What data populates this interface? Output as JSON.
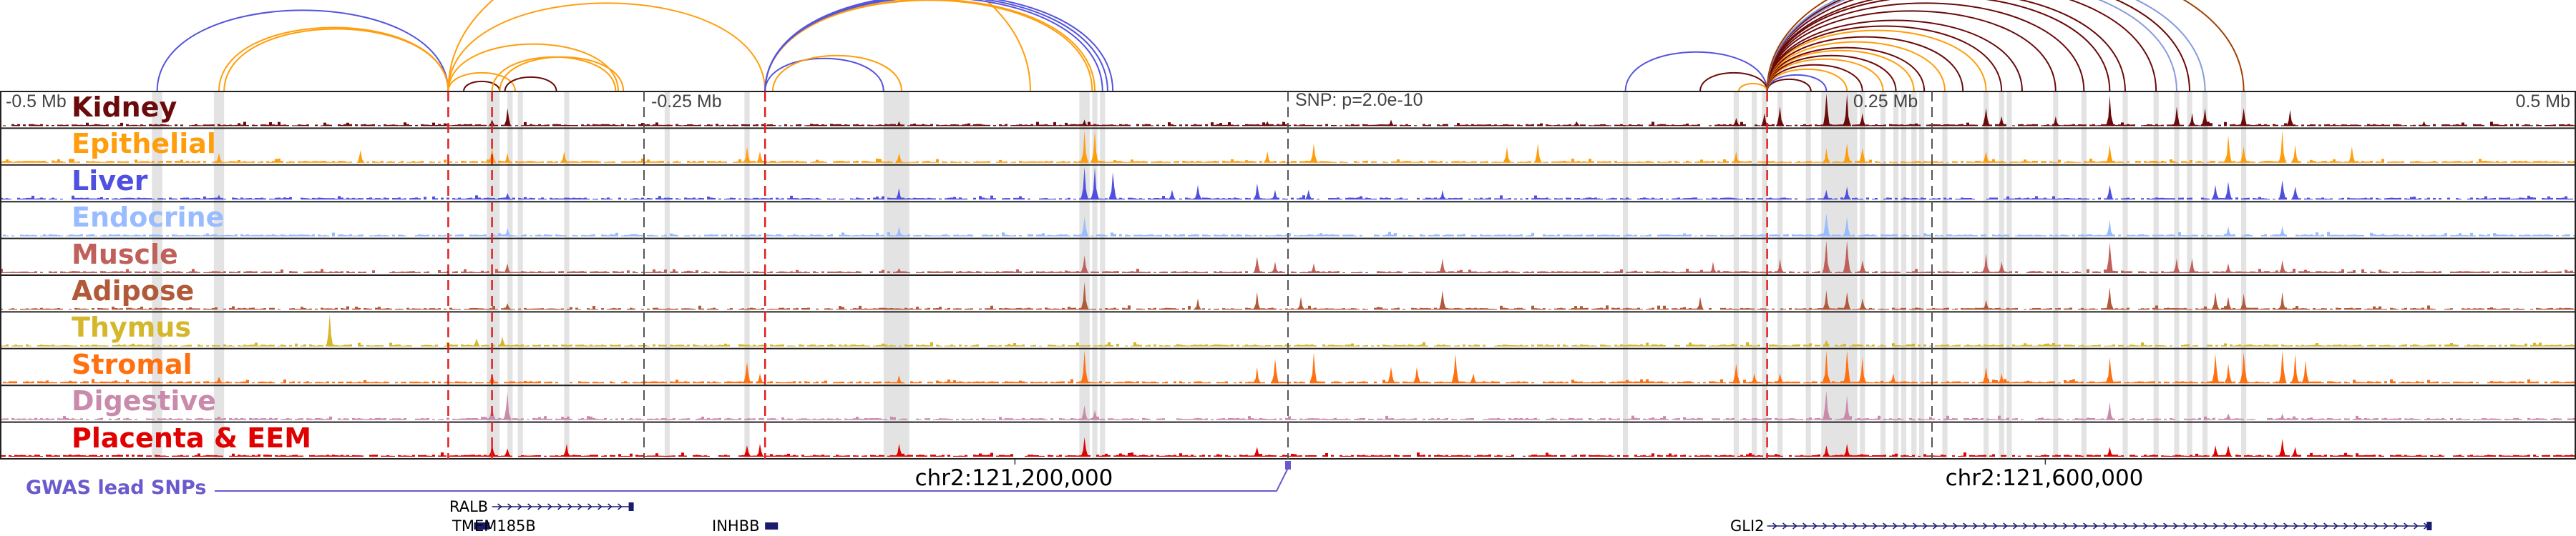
{
  "chart_data": {
    "type": "genome-browser-tracks",
    "x_unit": "kb relative to lead SNP",
    "xlim": [
      -500,
      500
    ],
    "axis_labels": {
      "left": "-0.5 Mb",
      "left_mid": "-0.25 Mb",
      "right_mid": "0.25 Mb",
      "right": "0.5 Mb"
    },
    "snp_label": "SNP: p=2.0e-10",
    "coordinates": [
      {
        "label": "chr2:121,200,000",
        "offset_kb": -106
      },
      {
        "label": "chr2:121,600,000",
        "offset_kb": 294
      }
    ],
    "gwas_label": "GWAS lead SNPs",
    "red_markers_kb": [
      -326,
      -309,
      -203,
      186
    ],
    "gray_markers_kb": [
      -250,
      0,
      250
    ],
    "highlights_kb": [
      [
        -441,
        -437
      ],
      [
        -417,
        -413
      ],
      [
        -311,
        -306
      ],
      [
        -303,
        -301
      ],
      [
        -299,
        -297
      ],
      [
        -281,
        -279
      ],
      [
        -242,
        -240
      ],
      [
        -211,
        -209
      ],
      [
        -157,
        -147
      ],
      [
        -81,
        -77
      ],
      [
        -76,
        -74
      ],
      [
        -73,
        -71
      ],
      [
        130,
        132
      ],
      [
        173,
        175
      ],
      [
        180,
        182
      ],
      [
        184,
        186
      ],
      [
        190,
        192
      ],
      [
        201,
        203
      ],
      [
        207,
        221
      ],
      [
        222,
        224
      ],
      [
        230,
        232
      ],
      [
        235,
        237
      ],
      [
        238,
        240
      ],
      [
        242,
        244
      ],
      [
        245,
        247
      ],
      [
        254,
        256
      ],
      [
        270,
        272
      ],
      [
        276,
        278
      ],
      [
        279,
        281
      ],
      [
        297,
        299
      ],
      [
        308,
        310
      ],
      [
        324,
        326
      ],
      [
        336,
        338
      ],
      [
        344,
        346
      ],
      [
        349,
        351
      ],
      [
        355,
        357
      ],
      [
        370,
        372
      ]
    ],
    "tracks": [
      {
        "name": "Kidney",
        "color": "#6b0a0a",
        "peaks": [
          [
            -303,
            0.55
          ],
          [
            -309,
            0.2
          ],
          [
            -151,
            0.15
          ],
          [
            -79,
            0.2
          ],
          [
            -8,
            0.15
          ],
          [
            40,
            0.2
          ],
          [
            112,
            0.15
          ],
          [
            174,
            0.25
          ],
          [
            185,
            0.4
          ],
          [
            191,
            0.6
          ],
          [
            209,
            1.0
          ],
          [
            217,
            1.0
          ],
          [
            223,
            0.4
          ],
          [
            271,
            0.55
          ],
          [
            277,
            0.3
          ],
          [
            298,
            0.3
          ],
          [
            319,
            0.95
          ],
          [
            345,
            0.6
          ],
          [
            351,
            0.4
          ],
          [
            356,
            0.55
          ],
          [
            371,
            0.55
          ],
          [
            389,
            0.5
          ],
          [
            441,
            0.15
          ]
        ]
      },
      {
        "name": "Epithelial",
        "color": "#ff9e0d",
        "peaks": [
          [
            -415,
            0.3
          ],
          [
            -360,
            0.4
          ],
          [
            -309,
            0.5
          ],
          [
            -303,
            0.3
          ],
          [
            -281,
            0.35
          ],
          [
            -210,
            0.5
          ],
          [
            -205,
            0.35
          ],
          [
            -151,
            0.3
          ],
          [
            -79,
            1.0
          ],
          [
            -75,
            1.0
          ],
          [
            -8,
            0.35
          ],
          [
            10,
            0.6
          ],
          [
            85,
            0.5
          ],
          [
            97,
            0.6
          ],
          [
            174,
            0.35
          ],
          [
            209,
            0.45
          ],
          [
            217,
            0.6
          ],
          [
            223,
            0.45
          ],
          [
            271,
            0.35
          ],
          [
            319,
            0.55
          ],
          [
            365,
            0.85
          ],
          [
            371,
            0.5
          ],
          [
            386,
            1.0
          ],
          [
            391,
            0.55
          ],
          [
            413,
            0.5
          ]
        ]
      },
      {
        "name": "Liver",
        "color": "#4f4fe0",
        "peaks": [
          [
            -415,
            0.15
          ],
          [
            -303,
            0.2
          ],
          [
            -151,
            0.35
          ],
          [
            -79,
            1.0
          ],
          [
            -75,
            1.0
          ],
          [
            -68,
            0.85
          ],
          [
            -45,
            0.3
          ],
          [
            -35,
            0.45
          ],
          [
            -12,
            0.5
          ],
          [
            -5,
            0.3
          ],
          [
            8,
            0.3
          ],
          [
            60,
            0.3
          ],
          [
            209,
            0.3
          ],
          [
            217,
            0.4
          ],
          [
            319,
            0.45
          ],
          [
            360,
            0.45
          ],
          [
            365,
            0.55
          ],
          [
            386,
            0.6
          ],
          [
            391,
            0.4
          ]
        ]
      },
      {
        "name": "Endocrine",
        "color": "#99bbff",
        "peaks": [
          [
            -303,
            0.25
          ],
          [
            -151,
            0.3
          ],
          [
            -79,
            0.6
          ],
          [
            209,
            0.7
          ],
          [
            217,
            0.6
          ],
          [
            319,
            0.5
          ],
          [
            365,
            0.3
          ],
          [
            386,
            0.3
          ]
        ]
      },
      {
        "name": "Muscle",
        "color": "#c0605a",
        "peaks": [
          [
            -303,
            0.3
          ],
          [
            -151,
            0.15
          ],
          [
            -79,
            0.55
          ],
          [
            -12,
            0.5
          ],
          [
            -5,
            0.35
          ],
          [
            10,
            0.3
          ],
          [
            60,
            0.45
          ],
          [
            165,
            0.35
          ],
          [
            191,
            0.45
          ],
          [
            209,
            1.0
          ],
          [
            217,
            1.0
          ],
          [
            223,
            0.4
          ],
          [
            271,
            0.6
          ],
          [
            277,
            0.35
          ],
          [
            319,
            0.95
          ],
          [
            345,
            0.45
          ],
          [
            351,
            0.45
          ],
          [
            365,
            0.3
          ],
          [
            386,
            0.4
          ]
        ]
      },
      {
        "name": "Adipose",
        "color": "#b05a3a",
        "peaks": [
          [
            -303,
            0.2
          ],
          [
            -79,
            0.85
          ],
          [
            -35,
            0.35
          ],
          [
            -12,
            0.55
          ],
          [
            5,
            0.4
          ],
          [
            60,
            0.6
          ],
          [
            160,
            0.4
          ],
          [
            209,
            0.6
          ],
          [
            217,
            0.55
          ],
          [
            223,
            0.35
          ],
          [
            271,
            0.3
          ],
          [
            319,
            0.7
          ],
          [
            360,
            0.55
          ],
          [
            365,
            0.4
          ],
          [
            371,
            0.5
          ],
          [
            386,
            0.55
          ]
        ]
      },
      {
        "name": "Thymus",
        "color": "#d4b72a",
        "peaks": [
          [
            -372,
            1.0
          ],
          [
            -315,
            0.25
          ],
          [
            -305,
            0.3
          ],
          [
            209,
            0.2
          ]
        ]
      },
      {
        "name": "Stromal",
        "color": "#ff7010",
        "peaks": [
          [
            -415,
            0.2
          ],
          [
            -309,
            0.3
          ],
          [
            -210,
            0.65
          ],
          [
            -205,
            0.3
          ],
          [
            -151,
            0.25
          ],
          [
            -79,
            1.0
          ],
          [
            -12,
            0.5
          ],
          [
            -5,
            0.75
          ],
          [
            10,
            0.95
          ],
          [
            40,
            0.5
          ],
          [
            50,
            0.5
          ],
          [
            65,
            0.9
          ],
          [
            72,
            0.3
          ],
          [
            174,
            0.6
          ],
          [
            181,
            0.3
          ],
          [
            191,
            0.3
          ],
          [
            209,
            1.0
          ],
          [
            217,
            1.0
          ],
          [
            223,
            0.8
          ],
          [
            235,
            0.3
          ],
          [
            271,
            0.5
          ],
          [
            277,
            0.3
          ],
          [
            319,
            0.8
          ],
          [
            360,
            0.9
          ],
          [
            365,
            0.6
          ],
          [
            371,
            0.95
          ],
          [
            386,
            1.0
          ],
          [
            391,
            0.9
          ],
          [
            395,
            0.7
          ]
        ]
      },
      {
        "name": "Digestive",
        "color": "#c98aab",
        "peaks": [
          [
            -309,
            0.45
          ],
          [
            -303,
            0.85
          ],
          [
            -79,
            0.45
          ],
          [
            -75,
            0.3
          ],
          [
            209,
            0.9
          ],
          [
            217,
            0.75
          ],
          [
            319,
            0.55
          ],
          [
            365,
            0.2
          ],
          [
            386,
            0.2
          ]
        ]
      },
      {
        "name": "Placenta & EEM",
        "color": "#e00000",
        "peaks": [
          [
            -309,
            0.4
          ],
          [
            -303,
            0.25
          ],
          [
            -280,
            0.4
          ],
          [
            -210,
            0.35
          ],
          [
            -205,
            0.4
          ],
          [
            -151,
            0.4
          ],
          [
            -79,
            0.6
          ],
          [
            -12,
            0.3
          ],
          [
            209,
            0.35
          ],
          [
            217,
            0.4
          ],
          [
            319,
            0.3
          ],
          [
            360,
            0.35
          ],
          [
            365,
            0.35
          ],
          [
            386,
            0.55
          ],
          [
            391,
            0.3
          ]
        ]
      }
    ],
    "loops": [
      {
        "from": -439,
        "to": -326,
        "color": "#5555dd"
      },
      {
        "from": -415,
        "to": -326,
        "color": "#ff9e0d"
      },
      {
        "from": -413,
        "to": -326,
        "color": "#ff9e0d"
      },
      {
        "from": -326,
        "to": -203,
        "color": "#ff9e0d"
      },
      {
        "from": -326,
        "to": -260,
        "color": "#ff9e0d"
      },
      {
        "from": -326,
        "to": -100,
        "color": "#ff9e0d"
      },
      {
        "from": -326,
        "to": -300,
        "color": "#ff9e0d"
      },
      {
        "from": -320,
        "to": -306,
        "color": "#6b0a0a"
      },
      {
        "from": -309,
        "to": -261,
        "color": "#ff9e0d"
      },
      {
        "from": -306,
        "to": -258,
        "color": "#ff9e0d"
      },
      {
        "from": -304,
        "to": -284,
        "color": "#6b0a0a"
      },
      {
        "from": -203,
        "to": -76,
        "color": "#ff9e0d"
      },
      {
        "from": -203,
        "to": -75,
        "color": "#ff9e0d"
      },
      {
        "from": -203,
        "to": -72,
        "color": "#5555dd"
      },
      {
        "from": -203,
        "to": -70,
        "color": "#5555dd"
      },
      {
        "from": -203,
        "to": -68,
        "color": "#5555dd"
      },
      {
        "from": -203,
        "to": -157,
        "color": "#5555dd"
      },
      {
        "from": -200,
        "to": -150,
        "color": "#ff9e0d"
      },
      {
        "from": 131,
        "to": 186,
        "color": "#5555dd"
      },
      {
        "from": 160,
        "to": 186,
        "color": "#6b0a0a"
      },
      {
        "from": 175,
        "to": 186,
        "color": "#ff9e0d"
      },
      {
        "from": 186,
        "to": 203,
        "color": "#6b0a0a"
      },
      {
        "from": 186,
        "to": 209,
        "color": "#5555dd"
      },
      {
        "from": 186,
        "to": 217,
        "color": "#ff9e0d"
      },
      {
        "from": 186,
        "to": 223,
        "color": "#6b0a0a"
      },
      {
        "from": 186,
        "to": 231,
        "color": "#ff9e0d"
      },
      {
        "from": 186,
        "to": 236,
        "color": "#6b0a0a"
      },
      {
        "from": 186,
        "to": 243,
        "color": "#ff9e0d"
      },
      {
        "from": 186,
        "to": 247,
        "color": "#6b0a0a"
      },
      {
        "from": 186,
        "to": 255,
        "color": "#ff9e0d"
      },
      {
        "from": 186,
        "to": 262,
        "color": "#6b0a0a"
      },
      {
        "from": 186,
        "to": 271,
        "color": "#ff9e0d"
      },
      {
        "from": 186,
        "to": 277,
        "color": "#6b0a0a"
      },
      {
        "from": 186,
        "to": 285,
        "color": "#6b0a0a"
      },
      {
        "from": 186,
        "to": 298,
        "color": "#6b0a0a"
      },
      {
        "from": 186,
        "to": 309,
        "color": "#6b0a0a"
      },
      {
        "from": 186,
        "to": 319,
        "color": "#6b0a0a"
      },
      {
        "from": 186,
        "to": 325,
        "color": "#6b0a0a"
      },
      {
        "from": 186,
        "to": 337,
        "color": "#6b0a0a"
      },
      {
        "from": 186,
        "to": 345,
        "color": "#8899dd"
      },
      {
        "from": 186,
        "to": 350,
        "color": "#6b0a0a"
      },
      {
        "from": 186,
        "to": 356,
        "color": "#8899dd"
      },
      {
        "from": 186,
        "to": 371,
        "color": "#a04000"
      }
    ]
  },
  "genes": [
    {
      "name": "RALB",
      "start_kb": -309,
      "end_kb": -254,
      "strand": "+",
      "label_side": "left"
    },
    {
      "name": "TMEM185B",
      "start_kb": -316,
      "end_kb": -310,
      "strand": "box",
      "label_side": "right"
    },
    {
      "name": "INHBB",
      "start_kb": -203,
      "end_kb": -198,
      "strand": "box",
      "label_side": "left"
    },
    {
      "name": "GLI2",
      "start_kb": 186,
      "end_kb": 444,
      "strand": "+",
      "label_side": "left"
    }
  ]
}
